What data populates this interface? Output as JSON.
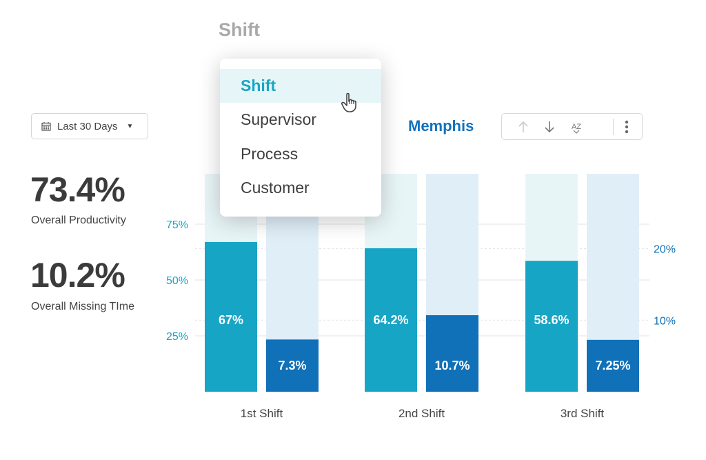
{
  "header": {
    "title": "Shift"
  },
  "filter": {
    "date_label": "Last 30 Days",
    "calendar_icon": "calendar-icon",
    "caret_icon": "caret-down-icon"
  },
  "kpis": [
    {
      "value": "73.4%",
      "label": "Overall Productivity"
    },
    {
      "value": "10.2%",
      "label": "Overall Missing TIme"
    }
  ],
  "location": "Memphis",
  "toolbar": {
    "icons": [
      "arrow-up-icon",
      "arrow-down-icon",
      "sort-az-icon",
      "more-vertical-icon"
    ],
    "sort_text": "AZ"
  },
  "dropdown": {
    "items": [
      "Shift",
      "Supervisor",
      "Process",
      "Customer"
    ],
    "selected": "Shift"
  },
  "colors": {
    "productivity": "#17a5c5",
    "productivity_track": "#e8f5f7",
    "missing_time": "#1070b8",
    "missing_track": "#e0eef8",
    "left_axis": "#17a5c5",
    "right_axis": "#0e6fb4"
  },
  "chart_data": {
    "type": "bar",
    "categories": [
      "1st Shift",
      "2nd Shift",
      "3rd Shift"
    ],
    "series": [
      {
        "values": [
          67,
          64.2,
          58.6
        ],
        "labels": [
          "67%",
          "64.2%",
          "58.6%"
        ],
        "axis": "left"
      },
      {
        "values": [
          7.3,
          10.7,
          7.25
        ],
        "labels": [
          "7.3%",
          "10.7%",
          "7.25%"
        ],
        "axis": "right"
      }
    ],
    "left_axis": {
      "ticks": [
        "25%",
        "50%",
        "75%"
      ],
      "tick_values": [
        25,
        50,
        75
      ],
      "ylim": [
        0,
        100
      ]
    },
    "right_axis": {
      "ticks": [
        "10%",
        "20%"
      ],
      "tick_values": [
        10,
        20
      ],
      "ylim": [
        0,
        30
      ]
    }
  }
}
